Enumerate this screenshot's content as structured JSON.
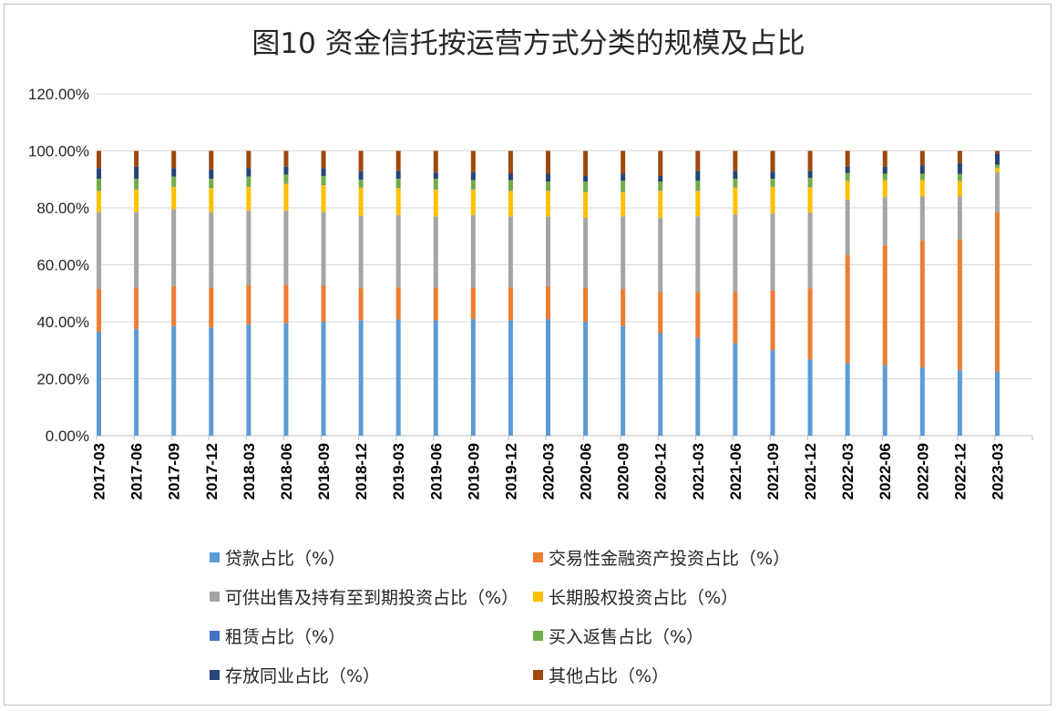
{
  "chart_data": {
    "type": "bar",
    "stacked": true,
    "title": "图10 资金信托按运营方式分类的规模及占比",
    "ylim": [
      0,
      120
    ],
    "yticks": [
      "0.00%",
      "20.00%",
      "40.00%",
      "60.00%",
      "80.00%",
      "100.00%",
      "120.00%"
    ],
    "grid": true,
    "legend_position": "bottom",
    "categories": [
      "2017-03",
      "2017-06",
      "2017-09",
      "2017-12",
      "2018-03",
      "2018-06",
      "2018-09",
      "2018-12",
      "2019-03",
      "2019-06",
      "2019-09",
      "2019-12",
      "2020-03",
      "2020-06",
      "2020-09",
      "2020-12",
      "2021-03",
      "2021-06",
      "2021-09",
      "2021-12",
      "2022-03",
      "2022-06",
      "2022-09",
      "2022-12",
      "2023-03"
    ],
    "series": [
      {
        "name": "贷款占比（%）",
        "color": "#5b9bd5",
        "values": [
          36.5,
          37.5,
          38.5,
          38.0,
          39.0,
          39.5,
          40.0,
          40.5,
          40.8,
          40.5,
          41.0,
          40.5,
          41.0,
          40.0,
          38.5,
          36.0,
          34.5,
          32.5,
          30.0,
          26.8,
          25.5,
          24.8,
          24.0,
          23.0,
          22.5
        ]
      },
      {
        "name": "交易性金融资产投资占比（%）",
        "color": "#ed7d31",
        "values": [
          15.0,
          14.5,
          14.0,
          14.0,
          14.0,
          13.5,
          12.8,
          11.2,
          11.2,
          11.5,
          11.0,
          11.5,
          11.5,
          12.0,
          13.0,
          14.5,
          16.0,
          18.0,
          21.0,
          25.0,
          38.0,
          42.0,
          44.5,
          46.0,
          56.0
        ]
      },
      {
        "name": "可供出售及持有至到期投资占比（%）",
        "color": "#a5a5a5",
        "values": [
          27.0,
          26.5,
          27.0,
          26.5,
          26.0,
          26.0,
          25.8,
          25.5,
          25.5,
          25.0,
          25.5,
          25.0,
          24.5,
          24.5,
          25.5,
          26.0,
          26.5,
          27.2,
          27.0,
          26.5,
          19.5,
          17.0,
          15.5,
          15.0,
          14.0
        ]
      },
      {
        "name": "长期股权投资占比（%）",
        "color": "#ffc000",
        "values": [
          7.5,
          8.0,
          8.0,
          8.5,
          8.5,
          9.5,
          9.4,
          10.0,
          9.5,
          9.5,
          9.0,
          9.0,
          9.0,
          9.0,
          8.5,
          9.5,
          9.0,
          9.5,
          9.5,
          9.0,
          6.5,
          6.0,
          5.8,
          5.5,
          1.5
        ]
      },
      {
        "name": "租赁占比（%）",
        "color": "#4472c4",
        "values": [
          0.2,
          0.2,
          0.2,
          0.2,
          0.2,
          0.2,
          0.2,
          0.2,
          0.2,
          0.2,
          0.2,
          0.2,
          0.2,
          0.2,
          0.2,
          0.2,
          0.2,
          0.2,
          0.2,
          0.2,
          0.2,
          0.2,
          0.2,
          0.2,
          0.2
        ]
      },
      {
        "name": "买入返售占比（%）",
        "color": "#70ad47",
        "values": [
          4.0,
          3.5,
          3.3,
          3.0,
          3.3,
          3.0,
          3.0,
          2.5,
          3.0,
          3.5,
          3.0,
          3.5,
          3.0,
          3.5,
          3.8,
          3.0,
          3.3,
          2.8,
          2.5,
          3.0,
          2.5,
          2.0,
          2.0,
          2.2,
          1.0
        ]
      },
      {
        "name": "存放同业占比（%）",
        "color": "#264478",
        "values": [
          3.8,
          4.3,
          3.0,
          3.3,
          3.0,
          2.8,
          2.8,
          3.0,
          2.8,
          2.2,
          2.8,
          2.3,
          2.8,
          2.0,
          2.5,
          2.0,
          3.5,
          2.8,
          2.5,
          2.5,
          2.3,
          2.5,
          3.0,
          3.8,
          3.8
        ]
      },
      {
        "name": "其他占比（%）",
        "color": "#9e480e",
        "values": [
          6.0,
          5.5,
          6.0,
          6.5,
          6.0,
          5.5,
          6.0,
          7.1,
          7.0,
          7.6,
          7.5,
          8.0,
          8.0,
          8.8,
          8.0,
          8.8,
          7.0,
          7.0,
          7.3,
          7.0,
          5.5,
          5.5,
          5.0,
          4.3,
          1.0
        ]
      }
    ]
  }
}
